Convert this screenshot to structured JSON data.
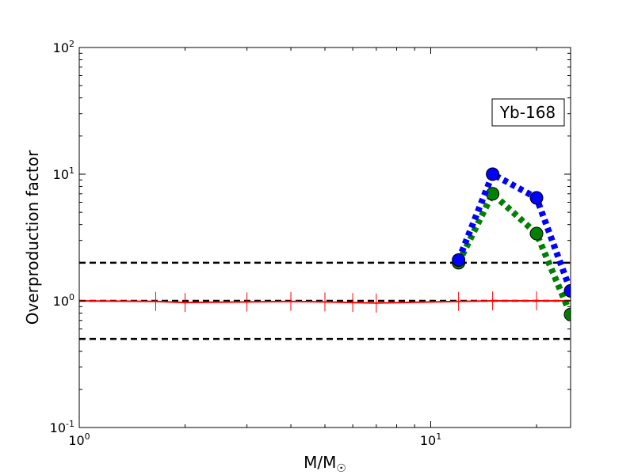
{
  "chart_data": {
    "type": "line",
    "xscale": "log",
    "yscale": "log",
    "xlim": [
      1,
      25
    ],
    "ylim": [
      0.1,
      100
    ],
    "xlabel": {
      "main": "M/M",
      "sub": "☉"
    },
    "ylabel": "Overproduction factor",
    "x_ticks": [
      {
        "value": 1,
        "base": "10",
        "exp": "0"
      },
      {
        "value": 10,
        "base": "10",
        "exp": "1"
      }
    ],
    "y_ticks": [
      {
        "value": 0.1,
        "base": "10",
        "exp": "-1"
      },
      {
        "value": 1,
        "base": "10",
        "exp": "0"
      },
      {
        "value": 10,
        "base": "10",
        "exp": "1"
      },
      {
        "value": 100,
        "base": "10",
        "exp": "2"
      }
    ],
    "annotation": "Yb-168",
    "reference_lines": [
      {
        "y": 2,
        "style": "dashed",
        "color": "#000000"
      },
      {
        "y": 1,
        "style": "dashed",
        "color": "#000000"
      },
      {
        "y": 0.5,
        "style": "dashed",
        "color": "#000000"
      }
    ],
    "series": [
      {
        "color": "#ff0000",
        "style": "solid",
        "marker": "vline",
        "x": [
          1,
          1.65,
          2,
          3,
          4,
          5,
          6,
          7,
          12,
          15,
          20,
          25
        ],
        "y": [
          1.0,
          0.99,
          0.97,
          0.98,
          0.99,
          0.98,
          0.97,
          0.96,
          0.99,
          1.0,
          1.0,
          1.0
        ]
      },
      {
        "color": "#008000",
        "style": "dotted",
        "marker": "circle",
        "x": [
          12,
          15,
          20,
          25
        ],
        "y": [
          2.0,
          7.0,
          3.4,
          0.78
        ]
      },
      {
        "color": "#0000ff",
        "style": "dotted",
        "marker": "circle",
        "x": [
          12,
          15,
          20,
          25
        ],
        "y": [
          2.1,
          10.0,
          6.5,
          1.2
        ]
      }
    ]
  }
}
